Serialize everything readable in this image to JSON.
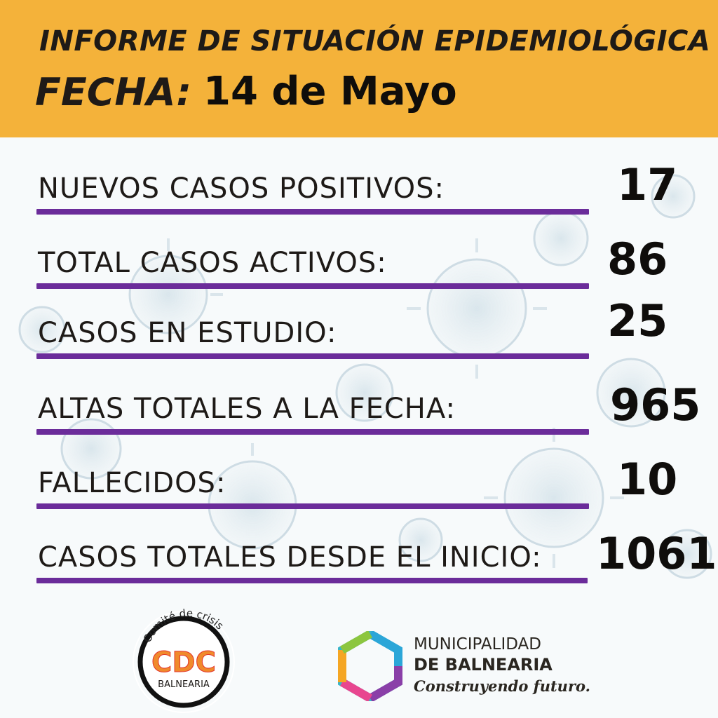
{
  "header": {
    "title": "INFORME DE SITUACIÓN EPIDEMIOLÓGICA",
    "date_label": "FECHA:",
    "date_value": "14 de Mayo"
  },
  "stats": [
    {
      "label": "NUEVOS CASOS POSITIVOS:",
      "value": "17"
    },
    {
      "label": "TOTAL CASOS ACTIVOS:",
      "value": "86"
    },
    {
      "label": "CASOS EN ESTUDIO:",
      "value": "25"
    },
    {
      "label": "ALTAS TOTALES A LA FECHA:",
      "value": "965"
    },
    {
      "label": "FALLECIDOS:",
      "value": "10"
    },
    {
      "label": "CASOS TOTALES DESDE EL INICIO:",
      "value": "1061"
    }
  ],
  "logos": {
    "cdc": {
      "arc_text": "Comité de crisis",
      "letters": "CDC",
      "subtitle": "BALNEARIA"
    },
    "municipality": {
      "line1": "MUNICIPALIDAD",
      "line2": "DE BALNEARIA",
      "line3": "Construyendo futuro."
    }
  },
  "colors": {
    "header_bg": "#f4b23a",
    "underline": "#6b2c9a",
    "text": "#1e1a17",
    "cdc_orange": "#f08a2c",
    "cdc_red": "#e2342b"
  }
}
